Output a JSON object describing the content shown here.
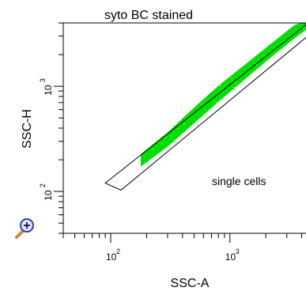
{
  "chart_data": {
    "type": "scatter",
    "title": "syto BC stained",
    "xlabel": "SSC-A",
    "ylabel": "SSC-H",
    "x_scale": "log",
    "y_scale": "log",
    "xlim": [
      40,
      5300
    ],
    "ylim": [
      40,
      4000
    ],
    "x_ticks": [
      {
        "base": "10",
        "exp": "2",
        "value": 100
      },
      {
        "base": "10",
        "exp": "3",
        "value": 1000
      }
    ],
    "y_ticks": [
      {
        "base": "10",
        "exp": "2",
        "value": 100
      },
      {
        "base": "10",
        "exp": "3",
        "value": 1000
      }
    ],
    "gate": {
      "label": "single cells",
      "polygon": [
        [
          90,
          120
        ],
        [
          122,
          103
        ],
        [
          5300,
          3500
        ],
        [
          5300,
          4600
        ]
      ]
    },
    "population": {
      "color": "#00e000",
      "band": [
        {
          "x": 180,
          "y": [
            175,
            225
          ]
        },
        {
          "x": 300,
          "y": [
            270,
            360
          ]
        },
        {
          "x": 500,
          "y": [
            450,
            620
          ]
        },
        {
          "x": 800,
          "y": [
            720,
            1000
          ]
        },
        {
          "x": 1300,
          "y": [
            1150,
            1550
          ]
        },
        {
          "x": 2200,
          "y": [
            1900,
            2500
          ]
        },
        {
          "x": 3500,
          "y": [
            2900,
            3800
          ]
        },
        {
          "x": 5000,
          "y": [
            3900,
            4300
          ]
        }
      ]
    },
    "grid": false,
    "legend": "none"
  },
  "icons": {
    "zoom": "zoom-magnifier-icon"
  }
}
